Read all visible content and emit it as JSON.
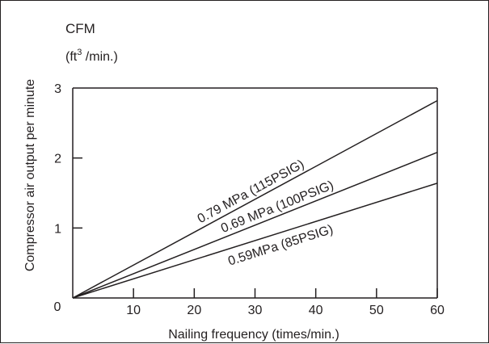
{
  "chart_data": {
    "type": "line",
    "y_unit_title": "CFM",
    "y_unit_sub_base": "(ft",
    "y_unit_sub_sup": "3",
    "y_unit_sub_tail": " /min.)",
    "ylabel": "Compressor air output per minute",
    "xlabel": "Nailing frequency (times/min.)",
    "xlim": [
      0,
      60
    ],
    "ylim": [
      0,
      3
    ],
    "x_ticks": [
      0,
      10,
      20,
      30,
      40,
      50,
      60
    ],
    "x_tick_labels": [
      "10",
      "20",
      "30",
      "40",
      "50",
      "60"
    ],
    "y_ticks": [
      0,
      1,
      2,
      3
    ],
    "y_tick_labels": [
      "0",
      "1",
      "2",
      "3"
    ],
    "origin_label": "0",
    "grid": false,
    "series": [
      {
        "name": "0.79 MPa (115PSIG)",
        "x": [
          0,
          60
        ],
        "y": [
          0,
          2.82
        ]
      },
      {
        "name": "0.69 MPa (100PSIG)",
        "x": [
          0,
          60
        ],
        "y": [
          0,
          2.08
        ]
      },
      {
        "name": "0.59MPa (85PSIG)",
        "x": [
          0,
          60
        ],
        "y": [
          0,
          1.64
        ]
      }
    ]
  }
}
